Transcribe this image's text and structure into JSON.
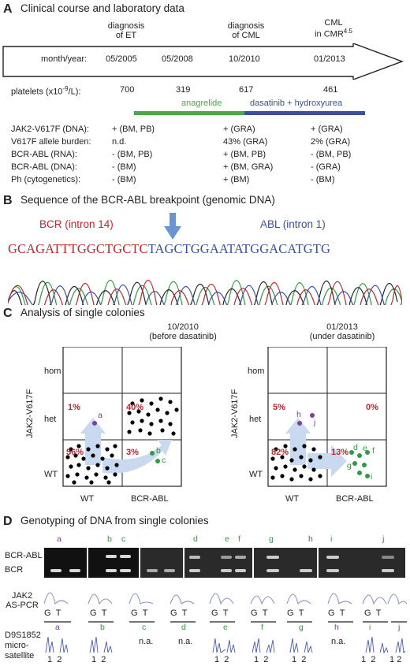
{
  "panelA": {
    "letter": "A",
    "title": "Clinical course and laboratory data",
    "events": [
      "diagnosis",
      "of ET",
      "diagnosis",
      "of CML",
      "CML",
      "in CMR",
      "4.5"
    ],
    "row_label": "month/year:",
    "dates": [
      "05/2005",
      "05/2008",
      "10/2010",
      "01/2013"
    ],
    "platelets_label": "platelets (x10",
    "platelets_exp": "-9",
    "platelets_unit": "/L):",
    "platelets": [
      "700",
      "319",
      "617",
      "461"
    ],
    "therapy_1": "anagrelide",
    "therapy_2": "dasatinib + hydroxyurea",
    "therapy_1_color": "#4aa84a",
    "therapy_2_color": "#3b4fa0",
    "rows": [
      {
        "label": "JAK2-V617F (DNA):",
        "v1": "+ (BM, PB)",
        "v2": "+ (GRA)",
        "v3": "+ (GRA)"
      },
      {
        "label": "V617F allele burden:",
        "v1": "n.d.",
        "v2": "43% (GRA)",
        "v3": "2% (GRA)"
      },
      {
        "label": "BCR-ABL (RNA):",
        "v1": "- (BM, PB)",
        "v2": "+ (BM, PB)",
        "v3": "- (BM, PB)"
      },
      {
        "label": "BCR-ABL (DNA):",
        "v1": "- (BM)",
        "v2": "+ (BM, GRA)",
        "v3": "- (GRA)"
      },
      {
        "label": "Ph (cytogenetics):",
        "v1": "- (BM)",
        "v2": "+ (BM)",
        "v3": "- (BM)"
      }
    ]
  },
  "panelB": {
    "letter": "B",
    "title": "Sequence of the BCR-ABL breakpoint (genomic DNA)",
    "bcr_label": "BCR (intron 14)",
    "abl_label": "ABL (intron 1)",
    "seq_bcr": "GCAGATTTGGCTGCTC",
    "seq_abl": "TAGCTGGAATATGGACATGTG",
    "bcr_color": "#c0262d",
    "abl_color": "#3b4fa0"
  },
  "panelC": {
    "letter": "C",
    "title": "Analysis of single colonies",
    "grids": [
      {
        "date": "10/2010",
        "note": "(before dasatinib)",
        "het_wt": "1%",
        "het_bcr": "40%",
        "wt_wt": "56%",
        "wt_bcr": "3%",
        "purple_labels": [
          "a"
        ],
        "green_labels": [
          "b",
          "c"
        ]
      },
      {
        "date": "01/2013",
        "note": "(under dasatinib)",
        "het_wt": "5%",
        "het_bcr": "0%",
        "wt_wt": "82%",
        "wt_bcr": "13%",
        "purple_labels": [
          "h",
          "j"
        ],
        "green_labels": [
          "d",
          "e",
          "f",
          "g",
          "i"
        ]
      }
    ],
    "y_axis": "JAK2-V617F",
    "y_ticks": [
      "hom",
      "het",
      "WT"
    ],
    "x_ticks": [
      "WT",
      "BCR-ABL"
    ]
  },
  "panelD": {
    "letter": "D",
    "title": "Genotyping of DNA from single colonies",
    "gel_labels": [
      "BCR-ABL",
      "BCR"
    ],
    "samples": [
      "a",
      "b",
      "c",
      "d",
      "e",
      "f",
      "g",
      "h",
      "i",
      "j"
    ],
    "jak2_label": [
      "JAK2",
      "AS-PCR"
    ],
    "allele_labels": [
      "G",
      "T"
    ],
    "ms_label": [
      "D9S1852",
      "micro-",
      "satellite"
    ],
    "ms_samples": [
      "a",
      "b",
      "c",
      "d",
      "e",
      "f",
      "g",
      "h",
      "i",
      "j"
    ],
    "ms_values": [
      "",
      "",
      "n.a.",
      "n.a.",
      "",
      "",
      "",
      "n.a.",
      "",
      ""
    ],
    "ms_alleles": [
      "1",
      "2"
    ]
  }
}
